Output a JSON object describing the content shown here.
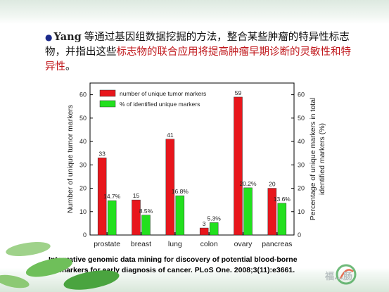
{
  "intro": {
    "bullet": "●",
    "author": "Yang",
    "text_normal_1": "等通过基因组数据挖掘的方法，整合某些肿瘤的特异性标志物，并指出这些",
    "text_highlight": "标志物的联合应用将提高肿瘤早期诊断的灵敏性和特异性",
    "text_normal_2": "。"
  },
  "citation": {
    "line1": "Integrative genomic data mining for discovery of potential blood-borne",
    "line2": "biomarkers for early diagnosis of cancer. PLoS One. 2008;3(11):e3661."
  },
  "watermark": "福…肠",
  "colors": {
    "tumor_bar": "#e8161c",
    "identified_bar": "#22e01e",
    "accent_green": "#5cb85c"
  },
  "chart_data": {
    "type": "bar",
    "categories": [
      "prostate",
      "breast",
      "lung",
      "colon",
      "ovary",
      "pancreas"
    ],
    "series": [
      {
        "name": "number of unique tumor markers",
        "axis": "left",
        "values": [
          33,
          15,
          41,
          3,
          59,
          20
        ],
        "labels": [
          "33",
          "15",
          "41",
          "3",
          "59",
          "20"
        ]
      },
      {
        "name": "% of identified unique markers",
        "axis": "right",
        "values": [
          14.7,
          8.5,
          16.8,
          5.3,
          20.2,
          13.6
        ],
        "labels": [
          "14.7%",
          "8.5%",
          "16.8%",
          "5.3%",
          "20.2%",
          "13.6%"
        ]
      }
    ],
    "ylabel": "Number of unique tumor markers",
    "ylabel_right": "Percentage of unique markers in total identified markers (%)",
    "ylabel_right_lines": [
      "Percentage of unique markers in total",
      "identified markers (%)"
    ],
    "ylim": [
      0,
      65
    ],
    "ylim_right": [
      0,
      65
    ],
    "yticks": [
      0,
      10,
      20,
      30,
      40,
      50,
      60
    ],
    "yticks_right": [
      0,
      10,
      20,
      30,
      40,
      50,
      60
    ],
    "legend_position": "top-left",
    "grid": false
  }
}
